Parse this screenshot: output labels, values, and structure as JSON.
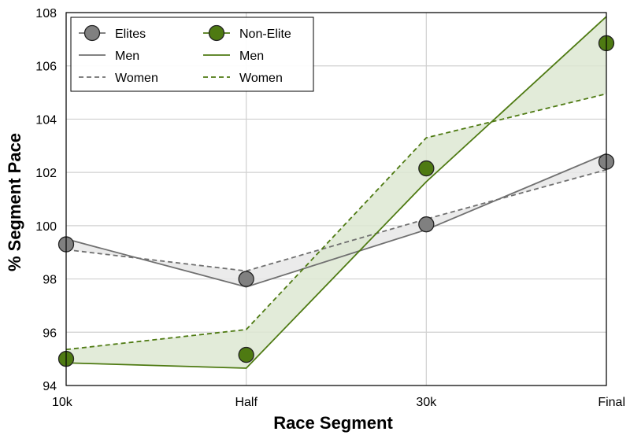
{
  "chart_data": {
    "type": "line",
    "title": "",
    "xlabel": "Race Segment",
    "ylabel": "% Segment Pace",
    "categories": [
      "10k",
      "Half",
      "30k",
      "Final"
    ],
    "ylim": [
      94,
      108
    ],
    "yticks": [
      94,
      96,
      98,
      100,
      102,
      104,
      106,
      108
    ],
    "grid": true,
    "legend": {
      "placement": "top-left",
      "groups": [
        {
          "label": "Elites",
          "men": "Men",
          "women": "Women"
        },
        {
          "label": "Non-Elite",
          "men": "Men",
          "women": "Women"
        }
      ]
    },
    "groups": [
      {
        "name": "Elites",
        "color": "#707070",
        "fill": "#e8e8e8",
        "marker_color": "#808080",
        "average": [
          99.3,
          98.0,
          100.05,
          102.4
        ],
        "men": [
          99.5,
          97.7,
          99.85,
          102.7
        ],
        "women": [
          99.1,
          98.3,
          100.25,
          102.1
        ]
      },
      {
        "name": "Non-Elite",
        "color": "#4e7a12",
        "fill": "#dde8d2",
        "marker_color": "#4e7a12",
        "average": [
          95.0,
          95.15,
          102.15,
          106.85
        ],
        "men": [
          94.85,
          94.65,
          101.65,
          107.85
        ],
        "women": [
          95.35,
          96.1,
          103.3,
          104.95
        ]
      }
    ]
  }
}
